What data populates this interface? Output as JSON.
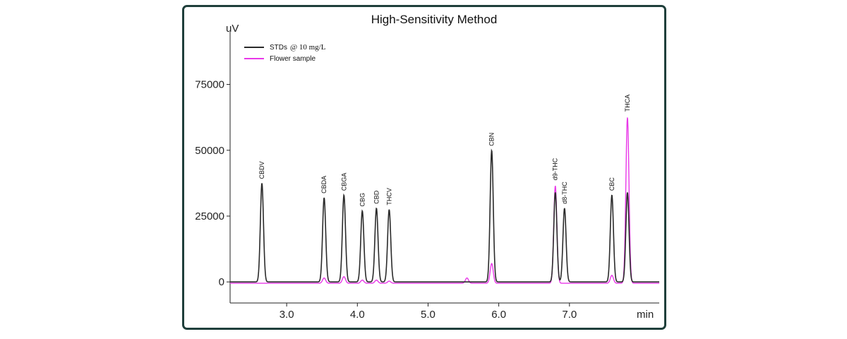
{
  "chart_data": {
    "type": "line",
    "title": "High-Sensitivity Method",
    "y_unit": "uV",
    "x_unit": "min",
    "xlim": [
      2.2,
      8.27
    ],
    "ylim": [
      -8000,
      95000
    ],
    "x_ticks": [
      "3.0",
      "4.0",
      "5.0",
      "6.0",
      "7.0"
    ],
    "x_tick_values": [
      3.0,
      4.0,
      5.0,
      6.0,
      7.0
    ],
    "y_ticks": [
      "0",
      "25000",
      "50000",
      "75000"
    ],
    "y_tick_values": [
      0,
      25000,
      50000,
      75000
    ],
    "legend": {
      "placement": "top-left",
      "entries": [
        {
          "label_prefix": "STDs",
          "label_suffix": "@ 10 mg/L",
          "color": "#2b2b2b"
        },
        {
          "label": "Flower sample",
          "color": "#e838e8"
        }
      ]
    },
    "peak_labels": [
      "CBDV",
      "CBDA",
      "CBGA",
      "CBG",
      "CBD",
      "THCV",
      "CBN",
      "d9-THC",
      "d8-THC",
      "CBC",
      "THCA"
    ],
    "series": [
      {
        "name": "STDs @ 10 mg/L",
        "color": "#2b2b2b",
        "baseline": 0,
        "peaks": [
          {
            "rt": 2.65,
            "height": 37500
          },
          {
            "rt": 3.53,
            "height": 32000
          },
          {
            "rt": 3.81,
            "height": 33000
          },
          {
            "rt": 4.07,
            "height": 27000
          },
          {
            "rt": 4.27,
            "height": 28000
          },
          {
            "rt": 4.45,
            "height": 27500
          },
          {
            "rt": 5.9,
            "height": 50000
          },
          {
            "rt": 6.8,
            "height": 34000
          },
          {
            "rt": 6.93,
            "height": 28000
          },
          {
            "rt": 7.6,
            "height": 33000
          },
          {
            "rt": 7.82,
            "height": 34000
          }
        ]
      },
      {
        "name": "Flower sample",
        "color": "#e838e8",
        "baseline": -500,
        "peaks": [
          {
            "rt": 3.53,
            "height": 2000
          },
          {
            "rt": 3.81,
            "height": 2500
          },
          {
            "rt": 4.07,
            "height": 1200
          },
          {
            "rt": 4.27,
            "height": 1200
          },
          {
            "rt": 4.45,
            "height": 800
          },
          {
            "rt": 5.55,
            "height": 2000
          },
          {
            "rt": 5.9,
            "height": 7500
          },
          {
            "rt": 6.8,
            "height": 37000
          },
          {
            "rt": 7.6,
            "height": 3000
          },
          {
            "rt": 7.82,
            "height": 63000
          }
        ]
      }
    ]
  }
}
